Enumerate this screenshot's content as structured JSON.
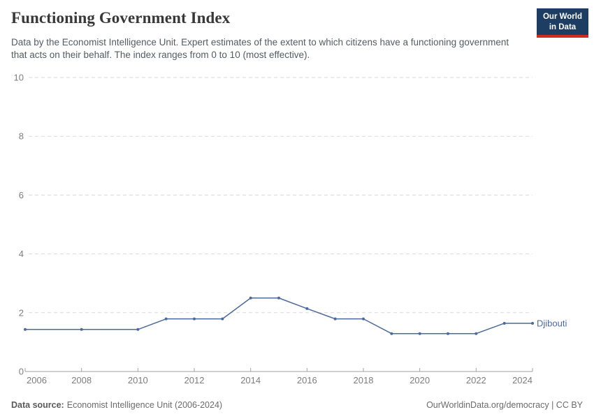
{
  "header": {
    "title": "Functioning Government Index",
    "subtitle": "Data by the Economist Intelligence Unit. Expert estimates of the extent to which citizens have a functioning government that acts on their behalf. The index ranges from 0 to 10 (most effective)."
  },
  "logo": {
    "line1": "Our World",
    "line2": "in Data",
    "bg_color": "#1d3d63",
    "accent_color": "#d42b21"
  },
  "chart_data": {
    "type": "line",
    "title": "Functioning Government Index",
    "xlabel": "",
    "ylabel": "",
    "xlim": [
      2006,
      2024
    ],
    "ylim": [
      0,
      10
    ],
    "yticks": [
      0,
      2,
      4,
      6,
      8,
      10
    ],
    "xticks": [
      2006,
      2008,
      2010,
      2012,
      2014,
      2016,
      2018,
      2020,
      2022,
      2024
    ],
    "grid": "horizontal-dashed",
    "legend_position": "end-of-line",
    "series": [
      {
        "name": "Djibouti",
        "color": "#4C6A9C",
        "x": [
          2006,
          2008,
          2010,
          2011,
          2012,
          2013,
          2014,
          2015,
          2016,
          2017,
          2018,
          2019,
          2020,
          2021,
          2022,
          2023,
          2024
        ],
        "values": [
          1.43,
          1.43,
          1.43,
          1.79,
          1.79,
          1.79,
          2.5,
          2.5,
          2.14,
          1.79,
          1.79,
          1.29,
          1.29,
          1.29,
          1.29,
          1.64,
          1.64
        ]
      }
    ],
    "colors": {
      "gridline": "#d9d9d9",
      "axis": "#a1a1a1",
      "tick_label": "#7d7d7d"
    }
  },
  "footer": {
    "source_label": "Data source:",
    "source_value": "Economist Intelligence Unit (2006-2024)",
    "link": "OurWorldinData.org/democracy | CC BY"
  }
}
